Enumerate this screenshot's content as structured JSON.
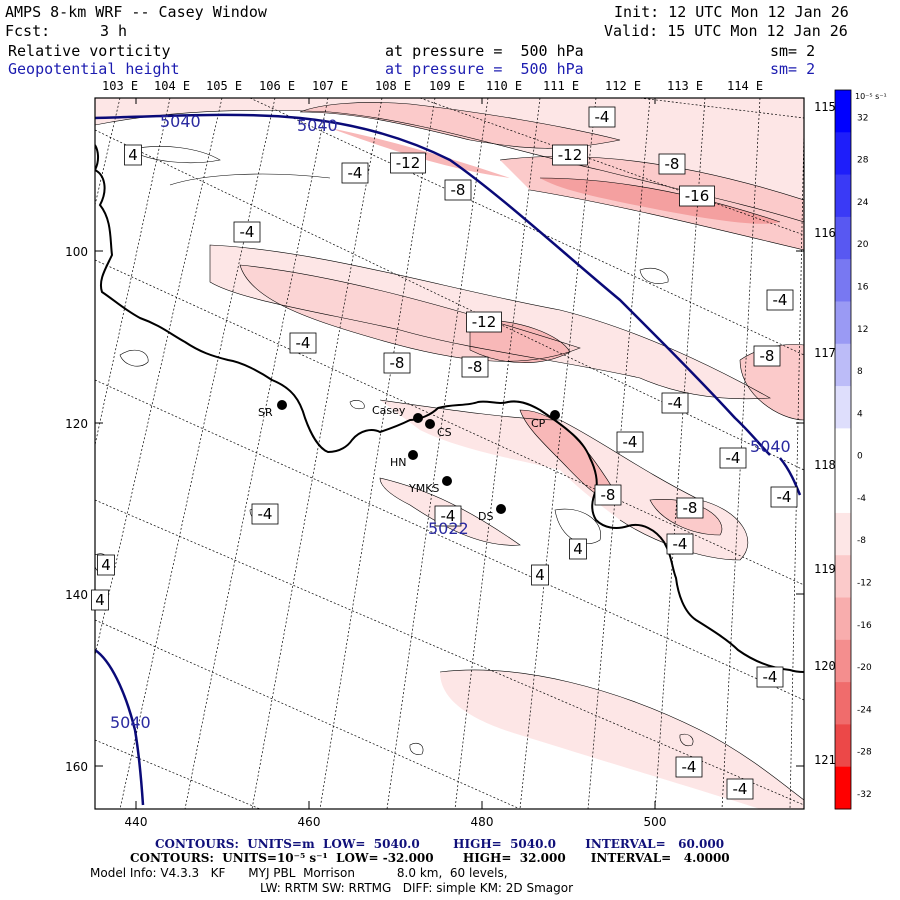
{
  "header": {
    "title": "AMPS 8-km WRF -- Casey Window",
    "init": "Init: 12 UTC Mon 12 Jan 26",
    "fcst_label": "Fcst:",
    "fcst_value": "3 h",
    "valid": "Valid: 15 UTC Mon 12 Jan 26",
    "field1_name": "Relative vorticity",
    "field1_pressure": "at pressure =  500 hPa",
    "field1_sm": "sm= 2",
    "field2_name": "Geopotential height",
    "field2_pressure": "at pressure =  500 hPa",
    "field2_sm": "sm= 2"
  },
  "axes": {
    "x_ticks": [
      "440",
      "460",
      "480",
      "500"
    ],
    "y_ticks": [
      "100",
      "120",
      "140",
      "160"
    ],
    "lon_labels": [
      "103 E",
      "104 E",
      "105 E",
      "106 E",
      "107 E",
      "108 E",
      "109 E",
      "110 E",
      "111 E",
      "112 E",
      "113 E",
      "114 E"
    ],
    "lat_labels": [
      "115 E",
      "116 E",
      "117 E",
      "118 E",
      "119 E",
      "120 E",
      "121 E"
    ]
  },
  "colorbar": {
    "units": "10⁻⁵ s⁻¹",
    "ticks": [
      "32",
      "28",
      "24",
      "20",
      "16",
      "12",
      "8",
      "4",
      "0",
      "-4",
      "-8",
      "-12",
      "-16",
      "-20",
      "-24",
      "-28",
      "-32"
    ],
    "colors_top_to_bottom": [
      "#0000ff",
      "#1e1efa",
      "#3a3af6",
      "#5858f2",
      "#7878f2",
      "#9a9af4",
      "#bcbcf8",
      "#dedefc",
      "#ffffff",
      "#ffffff",
      "#fde6e6",
      "#fbcaca",
      "#f8adad",
      "#f48e8e",
      "#f06c6c",
      "#ec4848",
      "#ff0000"
    ]
  },
  "stations": [
    {
      "name": "SR"
    },
    {
      "name": "Casey"
    },
    {
      "name": "CS"
    },
    {
      "name": "HN"
    },
    {
      "name": "YMKS"
    },
    {
      "name": "DS"
    },
    {
      "name": "CP"
    }
  ],
  "contour_labels": [
    "-4",
    "-12",
    "-8",
    "-12",
    "-8",
    "-16",
    "-4",
    "-4",
    "-4",
    "-12",
    "-8",
    "-8",
    "-4",
    "-8",
    "-4",
    "-4",
    "-4",
    "-4",
    "-4",
    "-8",
    "-4",
    "-8",
    "-4",
    "-4",
    "-4",
    "-4",
    "4",
    "4",
    "4",
    "4",
    "4",
    "4"
  ],
  "height_labels": [
    "5040",
    "5040",
    "5040",
    "5040",
    "5022"
  ],
  "footer": {
    "line1": "CONTOURS:  UNITS=m  LOW=  5040.0        HIGH=  5040.0       INTERVAL=   60.000",
    "line2": "CONTOURS:  UNITS=10⁻⁵ s⁻¹  LOW= -32.000       HIGH=  32.000      INTERVAL=   4.0000",
    "line3": "Model Info: V4.3.3   KF      MYJ PBL  Morrison           8.0 km,  60 levels,",
    "line4": "LW: RRTM SW: RRTMG   DIFF: simple KM: 2D Smagor"
  }
}
